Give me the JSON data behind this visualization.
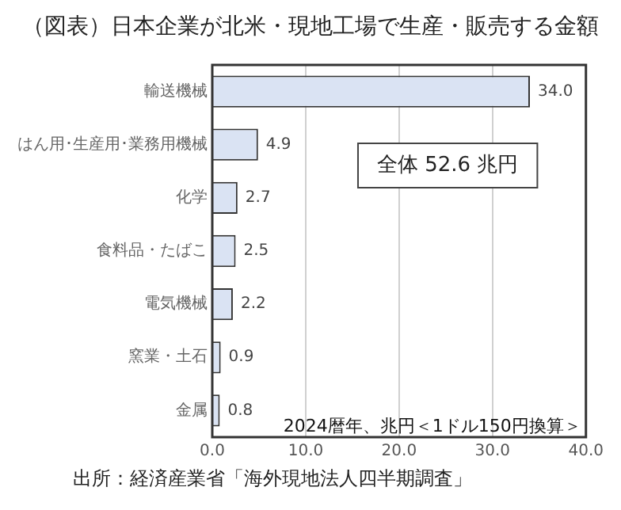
{
  "chart_data": {
    "type": "bar",
    "orientation": "horizontal",
    "title": "（図表）日本企業が北米・現地工場で生産・販売する金額",
    "categories": [
      "輸送機械",
      "はん用･生産用･業務用機械",
      "化学",
      "食料品・たばこ",
      "電気機械",
      "窯業・土石",
      "金属"
    ],
    "values": [
      34.0,
      4.9,
      2.7,
      2.5,
      2.2,
      0.9,
      0.8
    ],
    "value_labels": [
      "34.0",
      "4.9",
      "2.7",
      "2.5",
      "2.2",
      "0.9",
      "0.8"
    ],
    "color": "#dae3f3",
    "xlim": [
      0,
      40
    ],
    "xticks": [
      {
        "value": 0,
        "label": "0.0"
      },
      {
        "value": 10,
        "label": "10.0"
      },
      {
        "value": 20,
        "label": "20.0"
      },
      {
        "value": 30,
        "label": "30.0"
      },
      {
        "value": 40,
        "label": "40.0"
      }
    ],
    "grid": "x",
    "annotations": [
      "全体 52.6 兆円",
      "2024暦年、兆円＜1ドル150円換算＞",
      "出所：経済産業省「海外現地法人四半期調査」"
    ]
  }
}
